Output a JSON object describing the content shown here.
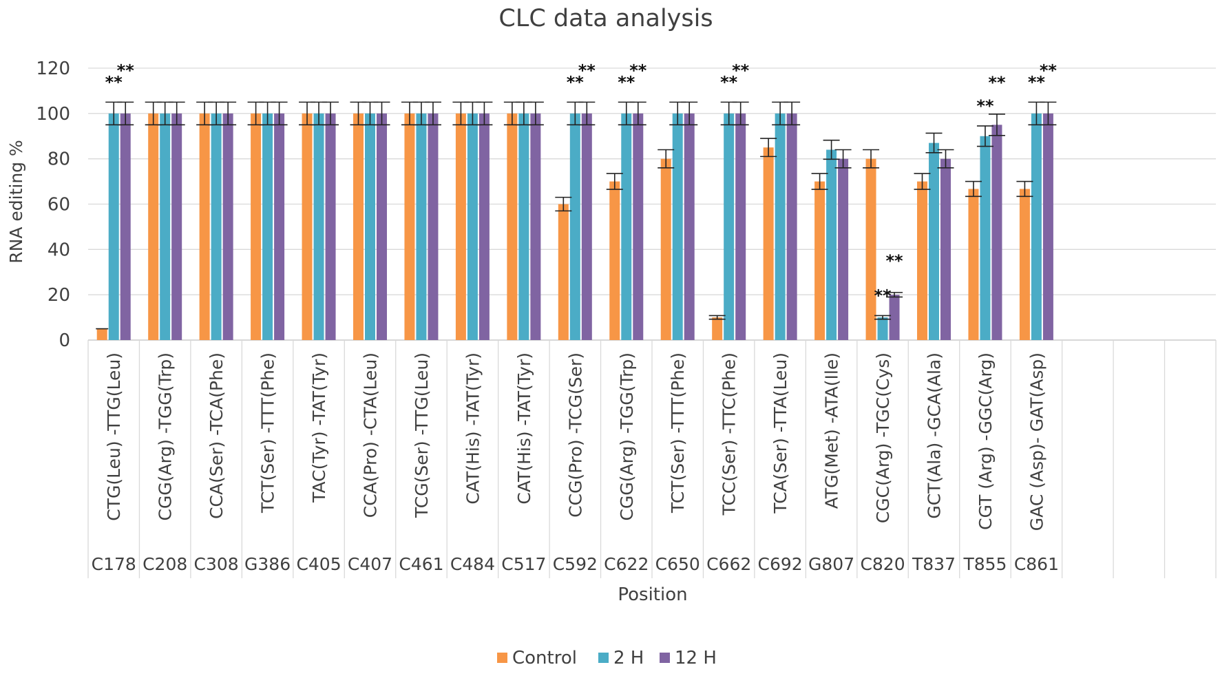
{
  "chart_data": {
    "type": "bar",
    "title": "CLC data analysis",
    "xlabel": "Position",
    "ylabel": "RNA editing %",
    "ylim": [
      0,
      120
    ],
    "yticks": [
      0,
      20,
      40,
      60,
      80,
      100,
      120
    ],
    "grid": true,
    "legend_position": "bottom",
    "significance_marker": "**",
    "categories": [
      {
        "position": "C178",
        "codon": "CTG(Leu) -TTG(Leu)"
      },
      {
        "position": "C208",
        "codon": "CGG(Arg) -TGG(Trp)"
      },
      {
        "position": "C308",
        "codon": "CCA(Ser) -TCA(Phe)"
      },
      {
        "position": "G386",
        "codon": "TCT(Ser) -TTT(Phe)"
      },
      {
        "position": "C405",
        "codon": "TAC(Tyr) -TAT(Tyr)"
      },
      {
        "position": "C407",
        "codon": "CCA(Pro) -CTA(Leu)"
      },
      {
        "position": "C461",
        "codon": "TCG(Ser) -TTG(Leu)"
      },
      {
        "position": "C484",
        "codon": "CAT(His) -TAT(Tyr)"
      },
      {
        "position": "C517",
        "codon": "CAT(His) -TAT(Tyr)"
      },
      {
        "position": "C592",
        "codon": "CCG(Pro) -TCG(Ser)"
      },
      {
        "position": "C622",
        "codon": "CGG(Arg) -TGG(Trp)"
      },
      {
        "position": "C650",
        "codon": "TCT(Ser) -TTT(Phe)"
      },
      {
        "position": "C662",
        "codon": "TCC(Ser) -TTC(Phe)"
      },
      {
        "position": "C692",
        "codon": "TCA(Ser) -TTA(Leu)"
      },
      {
        "position": "G807",
        "codon": "ATG(Met) -ATA(Ile)"
      },
      {
        "position": "C820",
        "codon": "CGC(Arg) -TGC(Cys)"
      },
      {
        "position": "T837",
        "codon": "GCT(Ala) -GCA(Ala)"
      },
      {
        "position": "T855",
        "codon": "CGT (Arg) -GGC(Arg)"
      },
      {
        "position": "C861",
        "codon": "GAC (Asp)- GAT(Asp)"
      }
    ],
    "empty_slots": 3,
    "series": [
      {
        "name": "Control",
        "color": "#f79646",
        "values": [
          5,
          100,
          100,
          100,
          100,
          100,
          100,
          100,
          100,
          60,
          70,
          80,
          10,
          85,
          70,
          80,
          70,
          66.7,
          66.7
        ],
        "errors": [
          0,
          5,
          5,
          5,
          5,
          5,
          5,
          5,
          5,
          3,
          3.5,
          4,
          0.8,
          4,
          3.5,
          4,
          3.5,
          3.3,
          3.3
        ],
        "significant": [
          false,
          false,
          false,
          false,
          false,
          false,
          false,
          false,
          false,
          false,
          false,
          false,
          false,
          false,
          false,
          false,
          false,
          false,
          false
        ]
      },
      {
        "name": "2 H",
        "color": "#4bacc6",
        "values": [
          100,
          100,
          100,
          100,
          100,
          100,
          100,
          100,
          100,
          100,
          100,
          100,
          100,
          100,
          84,
          10,
          87,
          90,
          100
        ],
        "errors": [
          5,
          5,
          5,
          5,
          5,
          5,
          5,
          5,
          5,
          5,
          5,
          5,
          5,
          5,
          4.2,
          0.8,
          4.3,
          4.5,
          5
        ],
        "significant": [
          true,
          false,
          false,
          false,
          false,
          false,
          false,
          false,
          false,
          true,
          true,
          false,
          true,
          false,
          false,
          true,
          false,
          true,
          true
        ]
      },
      {
        "name": "12 H",
        "color": "#8064a2",
        "values": [
          100,
          100,
          100,
          100,
          100,
          100,
          100,
          100,
          100,
          100,
          100,
          100,
          100,
          100,
          80,
          20,
          80,
          95,
          100
        ],
        "errors": [
          5,
          5,
          5,
          5,
          5,
          5,
          5,
          5,
          5,
          5,
          5,
          5,
          5,
          5,
          4,
          1,
          4,
          4.7,
          5
        ],
        "significant": [
          true,
          false,
          false,
          false,
          false,
          false,
          false,
          false,
          false,
          true,
          true,
          false,
          true,
          false,
          false,
          true,
          false,
          true,
          true
        ]
      }
    ]
  }
}
